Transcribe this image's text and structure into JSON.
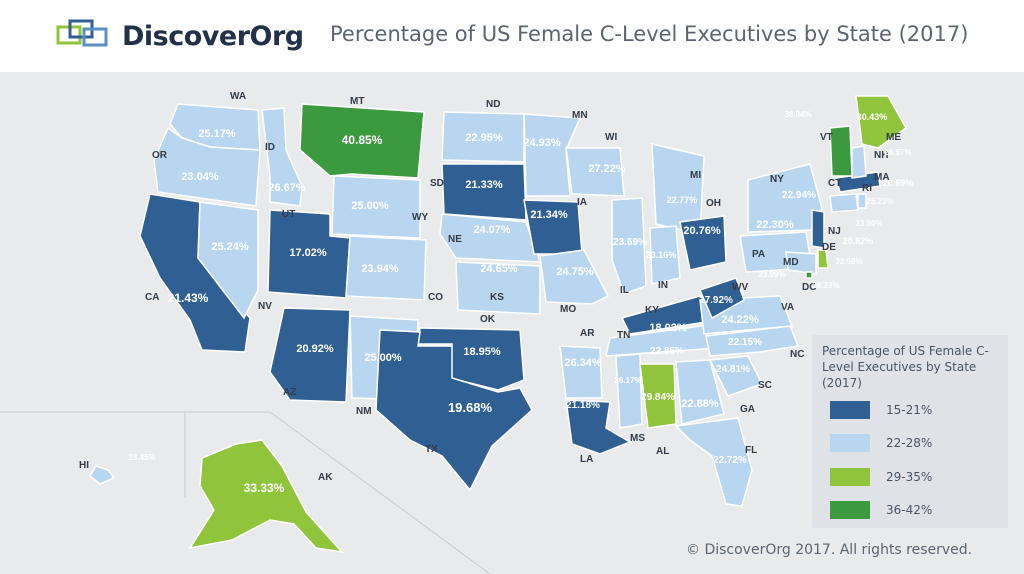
{
  "header": {
    "logo_text": "DiscoverOrg",
    "title": "Percentage of US Female C-Level Executives by State (2017)"
  },
  "colors": {
    "band_15_21": "#2f5f93",
    "band_22_28": "#b9d6f0",
    "band_29_35": "#8fc43b",
    "band_36_42": "#3c9a3e",
    "background": "#e9eaec"
  },
  "legend": {
    "title": "Percentage of US Female C-Level Executives by State (2017)",
    "items": [
      {
        "label": "15-21%",
        "color": "#2f5f93"
      },
      {
        "label": "22-28%",
        "color": "#b9d6f0"
      },
      {
        "label": "29-35%",
        "color": "#8fc43b"
      },
      {
        "label": "36-42%",
        "color": "#3c9a3e"
      }
    ]
  },
  "states": {
    "WA": {
      "abbr": "WA",
      "value": "25.17%"
    },
    "OR": {
      "abbr": "OR",
      "value": "23.04%"
    },
    "CA": {
      "abbr": "CA",
      "value": "21.43%"
    },
    "NV": {
      "abbr": "NV",
      "value": "25.24%"
    },
    "ID": {
      "abbr": "ID",
      "value": "26.67%"
    },
    "MT": {
      "abbr": "MT",
      "value": "40.85%"
    },
    "WY": {
      "abbr": "WY",
      "value": "25.00%"
    },
    "UT": {
      "abbr": "UT",
      "value": "17.02%"
    },
    "CO": {
      "abbr": "CO",
      "value": "23.94%"
    },
    "AZ": {
      "abbr": "AZ",
      "value": "20.92%"
    },
    "NM": {
      "abbr": "NM",
      "value": "25.00%"
    },
    "ND": {
      "abbr": "ND",
      "value": "22.95%"
    },
    "SD": {
      "abbr": "SD",
      "value": "21.33%"
    },
    "NE": {
      "abbr": "NE",
      "value": "24.07%"
    },
    "KS": {
      "abbr": "KS",
      "value": "24.65%"
    },
    "OK": {
      "abbr": "OK",
      "value": "18.95%"
    },
    "TX": {
      "abbr": "TX",
      "value": "19.68%"
    },
    "MN": {
      "abbr": "MN",
      "value": "24.93%"
    },
    "IA": {
      "abbr": "IA",
      "value": "21.34%"
    },
    "MO": {
      "abbr": "MO",
      "value": "24.75%"
    },
    "AR": {
      "abbr": "AR",
      "value": "26.34%"
    },
    "LA": {
      "abbr": "LA",
      "value": "21.18%"
    },
    "WI": {
      "abbr": "WI",
      "value": "27.22%"
    },
    "IL": {
      "abbr": "IL",
      "value": "23.69%"
    },
    "MI": {
      "abbr": "MI",
      "value": "22.77%"
    },
    "IN": {
      "abbr": "IN",
      "value": "23.16%"
    },
    "OH": {
      "abbr": "OH",
      "value": "20.76%"
    },
    "KY": {
      "abbr": "KY",
      "value": "18.02%"
    },
    "TN": {
      "abbr": "TN",
      "value": "22.85%"
    },
    "MS": {
      "abbr": "MS",
      "value": "26.17%"
    },
    "AL": {
      "abbr": "AL",
      "value": "29.84%"
    },
    "GA": {
      "abbr": "GA",
      "value": "22.88%"
    },
    "FL": {
      "abbr": "FL",
      "value": "22.72%"
    },
    "SC": {
      "abbr": "SC",
      "value": "24.81%"
    },
    "NC": {
      "abbr": "NC",
      "value": "22.15%"
    },
    "VA": {
      "abbr": "VA",
      "value": "24.22%"
    },
    "WV": {
      "abbr": "WV",
      "value": "17.92%"
    },
    "PA": {
      "abbr": "PA",
      "value": "22.30%"
    },
    "NY": {
      "abbr": "NY",
      "value": "22.94%"
    },
    "NJ": {
      "abbr": "NJ",
      "value": "20.82%"
    },
    "DE": {
      "abbr": "DE",
      "value": "32.58%"
    },
    "MD": {
      "abbr": "MD",
      "value": "23.99%"
    },
    "DC": {
      "abbr": "DC",
      "value": "36.23%"
    },
    "CT": {
      "abbr": "CT",
      "value": "23.90%"
    },
    "RI": {
      "abbr": "RI",
      "value": "25.23%"
    },
    "MA": {
      "abbr": "MA",
      "value": "20.69%"
    },
    "NH": {
      "abbr": "NH",
      "value": "26.57%"
    },
    "VT": {
      "abbr": "VT",
      "value": "38.04%"
    },
    "ME": {
      "abbr": "ME",
      "value": "30.43%"
    },
    "HI": {
      "abbr": "HI",
      "value": "23.45%"
    },
    "AK": {
      "abbr": "AK",
      "value": "33.33%"
    }
  },
  "footer": {
    "copyright": "© DiscoverOrg 2017. All rights reserved."
  }
}
